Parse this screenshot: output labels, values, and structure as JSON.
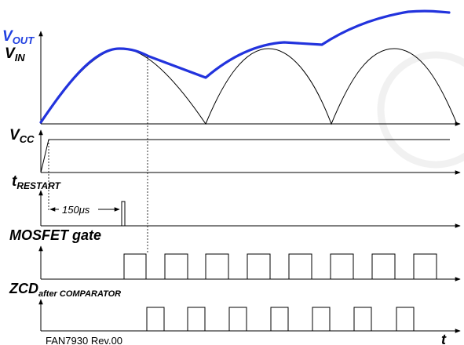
{
  "labels": {
    "vout_main": "V",
    "vout_sub": "OUT",
    "vin_main": "V",
    "vin_sub": "IN",
    "vcc_main": "V",
    "vcc_sub": "CC",
    "trestart_main": "t",
    "trestart_sub": "RESTART",
    "restart_delay": "150μs",
    "mosfet_gate": "MOSFET gate",
    "zcd_main": "ZCD",
    "zcd_sub": "after COMPARATOR",
    "time_axis": "t",
    "footer": "FAN7930 Rev.00"
  },
  "colors": {
    "vout_trace": "#2233dd",
    "label_blue": "#1f3fe0",
    "watermark": "#f1f1f1"
  },
  "icons": {
    "watermark": "registered-mark-watermark"
  }
}
